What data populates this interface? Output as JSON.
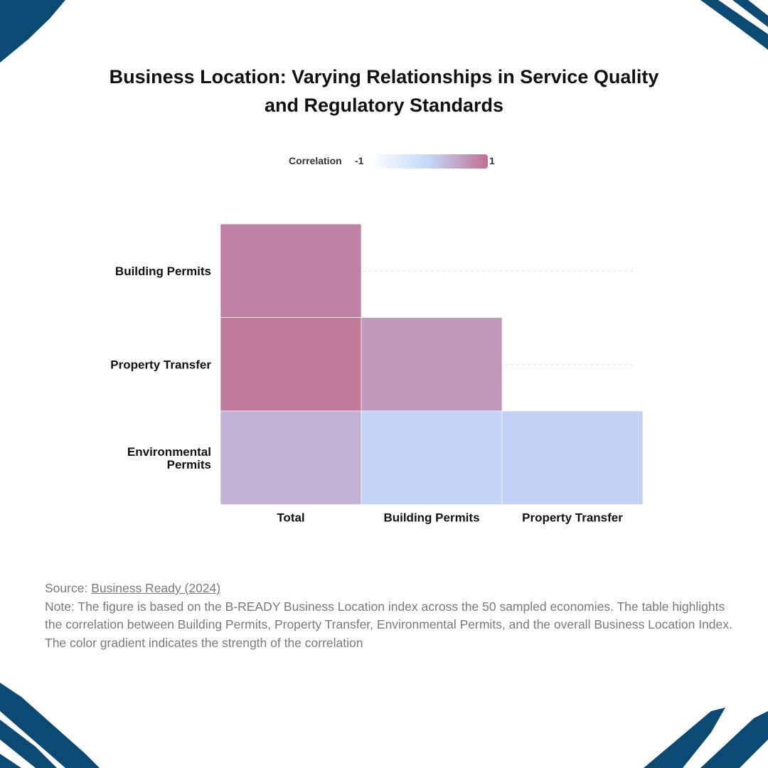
{
  "title_lines": [
    "Business Location: Varying Relationships in Service Quality",
    "and Regulatory Standards"
  ],
  "legend": {
    "label": "Correlation",
    "min_label": "-1",
    "max_label": "1",
    "colors": [
      "#ffffff",
      "#c4d8fb",
      "#bf6f91"
    ]
  },
  "chart_data": {
    "type": "heatmap",
    "title": "Business Location: Varying Relationships in Service Quality and Regulatory Standards",
    "x_categories": [
      "Total",
      "Building Permits",
      "Property Transfer"
    ],
    "y_categories": [
      "Building Permits",
      "Property Transfer",
      "Environmental Permits"
    ],
    "value_range": [
      -1,
      1
    ],
    "cells": [
      {
        "x": "Total",
        "y": "Building Permits",
        "value": 0.82
      },
      {
        "x": "Total",
        "y": "Property Transfer",
        "value": 0.9
      },
      {
        "x": "Building Permits",
        "y": "Property Transfer",
        "value": 0.6
      },
      {
        "x": "Total",
        "y": "Environmental Permits",
        "value": 0.35
      },
      {
        "x": "Building Permits",
        "y": "Environmental Permits",
        "value": 0.05
      },
      {
        "x": "Property Transfer",
        "y": "Environmental Permits",
        "value": 0.08
      }
    ]
  },
  "footer": {
    "source_prefix": "Source: ",
    "source_link": "Business Ready (2024)",
    "note": "Note: The figure is based on the B-READY Business Location index across the 50 sampled economies. The table highlights the correlation between Building Permits, Property Transfer, Environmental Permits, and the overall Business Location Index. The color gradient indicates the strength of the correlation"
  },
  "decoration_color": "#0d4a73"
}
